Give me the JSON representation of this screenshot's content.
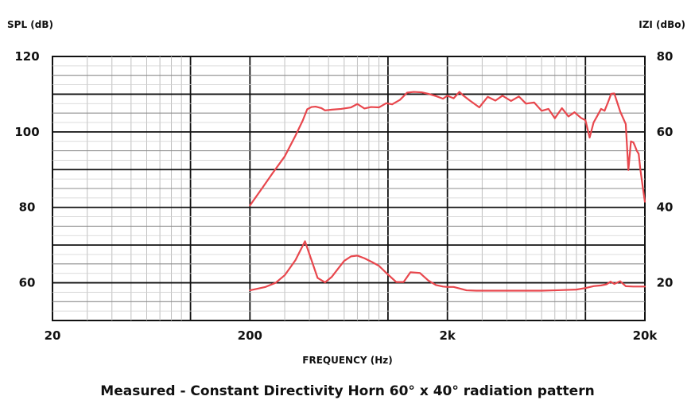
{
  "chart_data": {
    "type": "line",
    "title": "",
    "caption": "Measured - Constant Directivity Horn 60° x 40° radiation pattern",
    "xlabel": "FREQUENCY (Hz)",
    "ylabel_left": "SPL (dB)",
    "ylabel_right": "IZI (dBo)",
    "x_scale": "log",
    "xlim": [
      20,
      20000
    ],
    "ylim_left": [
      50,
      120
    ],
    "ylim_right": [
      10,
      80
    ],
    "grid": true,
    "line_color": "#e8474d",
    "x_ticks": [
      {
        "value": 20,
        "label": "20"
      },
      {
        "value": 200,
        "label": "200"
      },
      {
        "value": 2000,
        "label": "2k"
      },
      {
        "value": 20000,
        "label": "20k"
      }
    ],
    "y_ticks_left": [
      {
        "value": 60,
        "label": "60"
      },
      {
        "value": 80,
        "label": "80"
      },
      {
        "value": 100,
        "label": "100"
      },
      {
        "value": 120,
        "label": "120"
      }
    ],
    "y_ticks_right": [
      {
        "value": 20,
        "label": "20"
      },
      {
        "value": 40,
        "label": "40"
      },
      {
        "value": 60,
        "label": "60"
      },
      {
        "value": 80,
        "label": "80"
      }
    ],
    "series": [
      {
        "axis": "left",
        "x": [
          200,
          230,
          260,
          300,
          340,
          370,
          390,
          410,
          430,
          460,
          480,
          520,
          580,
          650,
          700,
          760,
          820,
          900,
          980,
          1050,
          1150,
          1250,
          1350,
          1480,
          1600,
          1750,
          1900,
          2000,
          2150,
          2300,
          2400,
          2600,
          2900,
          3200,
          3500,
          3800,
          4200,
          4600,
          5000,
          5500,
          6000,
          6500,
          7000,
          7600,
          8200,
          8800,
          9500,
          10000,
          10500,
          11000,
          11500,
          12000,
          12500,
          13000,
          13500,
          14000,
          15000,
          16000,
          16500,
          17000,
          17500,
          17800,
          18200,
          18600,
          19000,
          19500,
          20000
        ],
        "y": [
          80.5,
          85,
          89,
          93.5,
          99,
          103,
          106,
          106.6,
          106.7,
          106.3,
          105.7,
          105.9,
          106.1,
          106.5,
          107.4,
          106.2,
          106.6,
          106.5,
          107.6,
          107.3,
          108.5,
          110.4,
          110.6,
          110.5,
          110.1,
          109.5,
          108.8,
          109.6,
          108.9,
          110.6,
          109.7,
          108.3,
          106.5,
          109.3,
          108.3,
          109.6,
          108.2,
          109.4,
          107.5,
          107.8,
          105.6,
          106.1,
          103.6,
          106.3,
          104.1,
          105.2,
          103.7,
          103.1,
          98.5,
          102.5,
          104.3,
          106.1,
          105.6,
          107.8,
          110.1,
          110.2,
          105.4,
          102.1,
          89.9,
          97.5,
          97.2,
          96.3,
          95,
          94.2,
          89.8,
          85.5,
          81.5
        ]
      },
      {
        "axis": "left",
        "x": [
          200,
          240,
          270,
          300,
          340,
          380,
          410,
          440,
          480,
          520,
          560,
          600,
          650,
          700,
          760,
          830,
          900,
          990,
          1100,
          1200,
          1300,
          1450,
          1600,
          1750,
          1900,
          2000,
          2150,
          2300,
          2500,
          2800,
          3200,
          3600,
          4000,
          4500,
          5000,
          6000,
          7000,
          8000,
          9000,
          10000,
          11000,
          12000,
          12800,
          13400,
          14000,
          15000,
          16000,
          17500,
          19000,
          20000
        ],
        "y": [
          58,
          58.9,
          60,
          62,
          66,
          71,
          66,
          61.3,
          60.1,
          61.6,
          63.8,
          65.8,
          67,
          67.2,
          66.5,
          65.5,
          64.5,
          62.4,
          60.2,
          60.2,
          62.8,
          62.6,
          60.6,
          59.4,
          59,
          58.9,
          58.9,
          58.5,
          58,
          57.9,
          57.9,
          57.9,
          57.9,
          57.9,
          57.9,
          57.9,
          58,
          58.1,
          58.2,
          58.6,
          59.1,
          59.3,
          59.6,
          60.3,
          59.7,
          60.4,
          59.1,
          59,
          59,
          59
        ]
      }
    ]
  }
}
